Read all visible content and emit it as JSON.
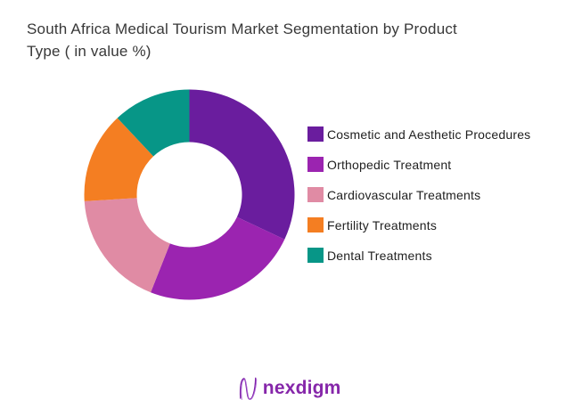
{
  "title": {
    "line1": "South Africa Medical Tourism Market Segmentation by Product",
    "line2": "Type ( in value %)",
    "full": "South Africa Medical Tourism Market Segmentation by Product Type ( in value %)"
  },
  "chart_data": {
    "type": "pie",
    "subtype": "donut",
    "title": "South Africa Medical Tourism Market Segmentation by Product Type ( in value %)",
    "unit": "value %",
    "start_angle_deg": 0,
    "direction": "clockwise",
    "inner_radius_ratio": 0.5,
    "legend_position": "right",
    "data_labels_shown": false,
    "segments": [
      {
        "label": "Cosmetic and Aesthetic Procedures",
        "value": 32,
        "color": "#6A1D9E"
      },
      {
        "label": "Orthopedic Treatment",
        "value": 24,
        "color": "#9B24B0"
      },
      {
        "label": "Cardiovascular Treatments",
        "value": 18,
        "color": "#E08BA4"
      },
      {
        "label": "Fertility Treatments",
        "value": 14,
        "color": "#F47E22"
      },
      {
        "label": "Dental Treatments",
        "value": 12,
        "color": "#079687"
      }
    ]
  },
  "footer": {
    "logo_text": "nexdigm",
    "logo_color": "#8627AA"
  }
}
